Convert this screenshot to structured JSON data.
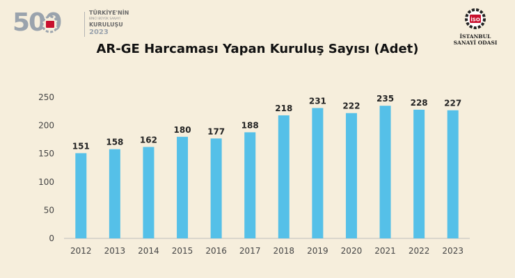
{
  "header": {
    "logo_500": {
      "number": "500",
      "line1": "TÜRKİYE'NİN",
      "line2": "BİNCİ BÜYÜK SANAYİ",
      "line3": "KURULUŞU",
      "line4": "2023",
      "accent_color": "#c8102e"
    },
    "logo_iso": {
      "emblem": "İSO",
      "line1": "İSTANBUL",
      "line2": "SANAYİ ODASI",
      "accent_color": "#c8102e"
    }
  },
  "chart_data": {
    "type": "bar",
    "title": "AR-GE Harcaması Yapan Kuruluş Sayısı (Adet)",
    "categories": [
      "2012",
      "2013",
      "2014",
      "2015",
      "2016",
      "2017",
      "2018",
      "2019",
      "2020",
      "2021",
      "2022",
      "2023"
    ],
    "values": [
      151,
      158,
      162,
      180,
      177,
      188,
      218,
      231,
      222,
      235,
      228,
      227
    ],
    "ylim": [
      0,
      250
    ],
    "yticks": [
      0,
      50,
      100,
      150,
      200,
      250
    ],
    "grid": false,
    "data_labels": true,
    "bar_color": "#55c0e8"
  }
}
